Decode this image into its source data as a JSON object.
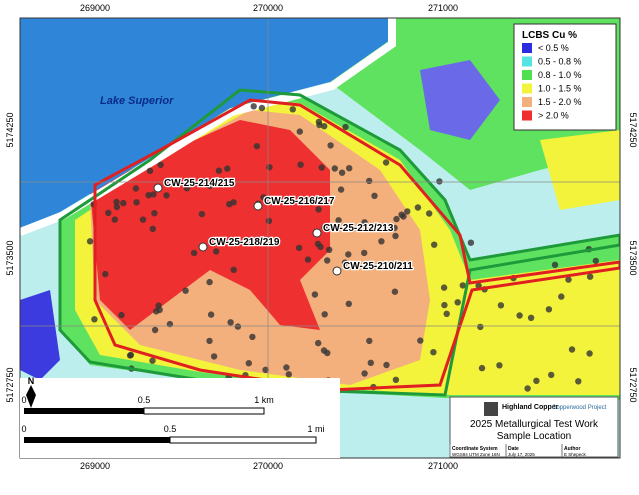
{
  "grid": {
    "top": [
      "269000",
      "270000",
      "271000"
    ],
    "left": [
      "5174250",
      "5173500",
      "5172750"
    ]
  },
  "lake": "Lake Superior",
  "legend": {
    "title": "LCBS Cu %",
    "items": [
      {
        "label": "< 0.5 %",
        "color": "#2d2de0"
      },
      {
        "label": "0.5 - 0.8 %",
        "color": "#55e3e3"
      },
      {
        "label": "0.8 - 1.0 %",
        "color": "#4fe04f"
      },
      {
        "label": "1.0 - 1.5 %",
        "color": "#f3f33c"
      },
      {
        "label": "1.5 - 2.0 %",
        "color": "#f4b07c"
      },
      {
        "label": "> 2.0 %",
        "color": "#ee2f2f"
      }
    ]
  },
  "samples": [
    "CW-25-214/215",
    "CW-25-216/217",
    "CW-25-212/213",
    "CW-25-218/219",
    "CW-25-210/211"
  ],
  "north": "N",
  "scale": {
    "km": [
      "0",
      "0.5",
      "1 km"
    ],
    "mi": [
      "0",
      "0.5",
      "1 mi"
    ]
  },
  "title_block": {
    "company": "Highland Copper",
    "project": "Copperwood Project",
    "title": "2025 Metallurgical Test Work",
    "subtitle": "Sample Location",
    "fields": [
      {
        "label": "Coordinate System",
        "value": "WGS84 UTM Zone 16N"
      },
      {
        "label": "Date",
        "value": "July 17, 2025"
      },
      {
        "label": "Author",
        "value": "E Shepeck"
      }
    ]
  }
}
